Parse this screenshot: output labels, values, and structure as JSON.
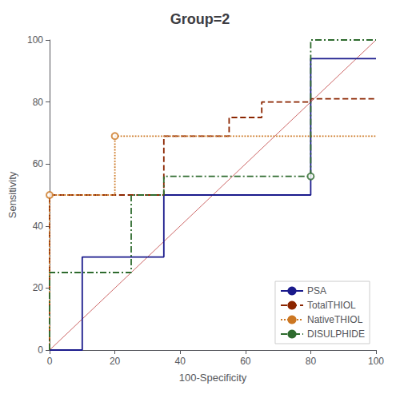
{
  "chart_data": {
    "type": "line",
    "title": "Group=2",
    "xlabel": "100-Specificity",
    "ylabel": "Sensitivity",
    "xlim": [
      0,
      100
    ],
    "ylim": [
      0,
      100
    ],
    "xticks": [
      0,
      20,
      40,
      60,
      80,
      100
    ],
    "yticks": [
      0,
      20,
      40,
      60,
      80,
      100
    ],
    "grid": false,
    "legend": "lower right",
    "reference_line": {
      "x": [
        0,
        100
      ],
      "values": [
        0,
        100
      ],
      "color": "#cc6666"
    },
    "series": [
      {
        "name": "PSA",
        "color": "#1a1a8c",
        "line_style": "solid",
        "x": [
          0,
          0,
          10,
          10,
          35,
          35,
          80,
          80,
          100
        ],
        "values": [
          0,
          0,
          0,
          30,
          30,
          50,
          50,
          94,
          94
        ],
        "circle_points": []
      },
      {
        "name": "TotalTHIOL",
        "color": "#8b2500",
        "line_style": "dashed",
        "x": [
          0,
          0,
          35,
          35,
          55,
          55,
          65,
          65,
          80,
          80,
          100
        ],
        "values": [
          0,
          50,
          50,
          69,
          69,
          75,
          75,
          80,
          80,
          81,
          81
        ],
        "circle_points": []
      },
      {
        "name": "NativeTHIOL",
        "color": "#cc7722",
        "line_style": "dotted",
        "x": [
          0,
          0,
          20,
          20,
          100
        ],
        "values": [
          0,
          50,
          50,
          69,
          69
        ],
        "circle_points": [
          [
            0,
            50
          ],
          [
            20,
            69
          ]
        ]
      },
      {
        "name": "DISULPHIDE",
        "color": "#2e6b2e",
        "line_style": "dashdot",
        "x": [
          0,
          0,
          25,
          25,
          35,
          35,
          80,
          80,
          100
        ],
        "values": [
          0,
          25,
          25,
          50,
          50,
          56,
          56,
          100,
          100
        ],
        "circle_points": [
          [
            80,
            56
          ]
        ]
      }
    ]
  }
}
